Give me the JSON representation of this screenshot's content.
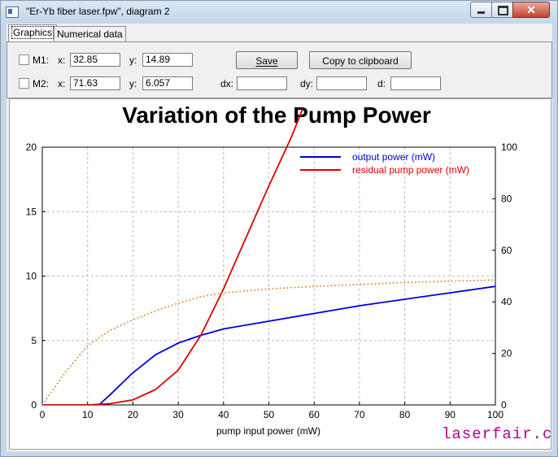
{
  "window": {
    "title": "\"Er-Yb fiber laser.fpw\", diagram 2",
    "close_glyph": "✕",
    "icons": [
      "app-icon",
      "minimize-icon",
      "maximize-icon",
      "close-icon"
    ]
  },
  "tabs": [
    "Graphics",
    "Numerical data"
  ],
  "markers": {
    "m1": {
      "label": "M1:",
      "x_label": "x:",
      "x_value": "32.85",
      "y_label": "y:",
      "y_value": "14.89"
    },
    "m2": {
      "label": "M2:",
      "x_label": "x:",
      "x_value": "71.63",
      "y_label": "y:",
      "y_value": "6.057"
    }
  },
  "diffs": {
    "dx_label": "dx:",
    "dx_value": "",
    "dy_label": "dy:",
    "dy_value": "",
    "d_label": "d:",
    "d_value": ""
  },
  "buttons": {
    "save": "Save",
    "copy": "Copy to clipboard"
  },
  "watermark": "laserfair.com",
  "colors": {
    "output": "#0000dd",
    "residual": "#dd0000",
    "dotted": "#e07000",
    "grid": "#bbbbbb",
    "watermark": "#b0008c"
  },
  "chart_data": {
    "type": "line",
    "title": "Variation of the Pump Power",
    "xlabel": "pump input power (mW)",
    "ylabel_left": "",
    "ylabel_right": "",
    "xlim": [
      0,
      100
    ],
    "ylim_left": [
      0,
      20
    ],
    "ylim_right": [
      0,
      100
    ],
    "x_ticks": [
      0,
      10,
      20,
      30,
      40,
      50,
      60,
      70,
      80,
      90,
      100
    ],
    "y_left_ticks": [
      0,
      5,
      10,
      15,
      20
    ],
    "y_right_ticks": [
      0,
      20,
      40,
      60,
      80,
      100
    ],
    "grid": true,
    "legend_position": "top-right",
    "series": [
      {
        "name": "output power (mW)",
        "axis": "left",
        "style": "solid",
        "color": "#0000dd",
        "x": [
          0,
          12.5,
          15,
          20,
          25,
          30,
          35,
          40,
          50,
          60,
          70,
          80,
          90,
          100
        ],
        "y": [
          0,
          0,
          0.8,
          2.5,
          3.9,
          4.8,
          5.4,
          5.9,
          6.5,
          7.1,
          7.7,
          8.2,
          8.7,
          9.2
        ]
      },
      {
        "name": "residual pump power (mW)",
        "axis": "right",
        "style": "solid",
        "color": "#dd0000",
        "x": [
          0,
          10,
          15,
          20,
          25,
          30,
          35,
          40,
          45,
          50,
          55,
          57.5
        ],
        "y": [
          0,
          0,
          0.5,
          2,
          6,
          13.5,
          27,
          45,
          65,
          85,
          104,
          115
        ]
      },
      {
        "name": "",
        "axis": "left",
        "style": "dotted",
        "color": "#e07000",
        "x": [
          0,
          5,
          10,
          15,
          20,
          25,
          30,
          35,
          40,
          50,
          60,
          70,
          80,
          90,
          100
        ],
        "y": [
          0,
          2.5,
          4.6,
          5.8,
          6.6,
          7.3,
          7.9,
          8.4,
          8.7,
          9.0,
          9.2,
          9.35,
          9.5,
          9.6,
          9.7
        ]
      }
    ]
  }
}
